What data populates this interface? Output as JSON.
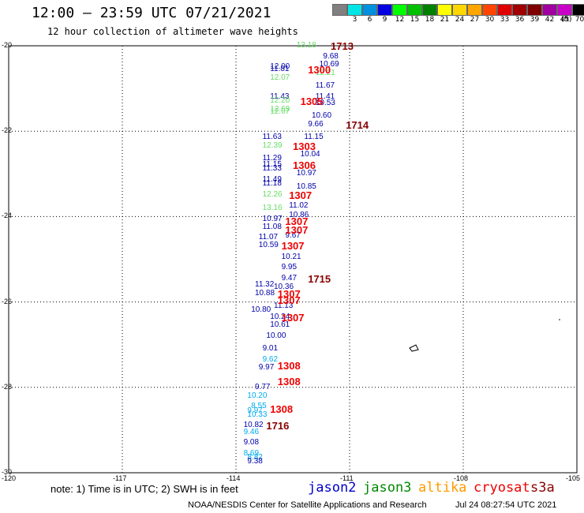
{
  "header": {
    "title": "12:00 – 23:59 UTC 07/21/2021",
    "subtitle": "12 hour collection of altimeter wave heights"
  },
  "colorbar": {
    "unit": "(ft)",
    "bins": [
      {
        "label": "",
        "color": "#808080"
      },
      {
        "label": "3",
        "color": "#00e5e5"
      },
      {
        "label": "6",
        "color": "#0090e0"
      },
      {
        "label": "9",
        "color": "#0000e0"
      },
      {
        "label": "12",
        "color": "#00ff00"
      },
      {
        "label": "15",
        "color": "#00c000"
      },
      {
        "label": "18",
        "color": "#008000"
      },
      {
        "label": "21",
        "color": "#ffff00"
      },
      {
        "label": "24",
        "color": "#ffd700"
      },
      {
        "label": "27",
        "color": "#ffa500"
      },
      {
        "label": "30",
        "color": "#ff4500"
      },
      {
        "label": "33",
        "color": "#e00000"
      },
      {
        "label": "36",
        "color": "#a00000"
      },
      {
        "label": "39",
        "color": "#800000"
      },
      {
        "label": "42",
        "color": "#a000a0"
      },
      {
        "label": "45",
        "color": "#c800c8"
      },
      {
        "label": "70",
        "color": "#000000"
      }
    ]
  },
  "map": {
    "lat_ticks": [
      "-20",
      "-22",
      "-24",
      "-26",
      "-28",
      "-30"
    ],
    "lon_ticks": [
      "-120",
      "-117",
      "-114",
      "-111",
      "-108",
      "-105"
    ],
    "wave_heights": [
      {
        "v": "13.18",
        "lat": -20.0,
        "lon": -112.4,
        "c": "#66dd66"
      },
      {
        "v": "9.68",
        "lat": -20.25,
        "lon": -111.7,
        "c": "#0000aa"
      },
      {
        "v": "10.69",
        "lat": -20.45,
        "lon": -111.8,
        "c": "#0000aa"
      },
      {
        "v": "12.00",
        "lat": -20.5,
        "lon": -113.1,
        "c": "#0000aa"
      },
      {
        "v": "11.81",
        "lat": -20.55,
        "lon": -113.1,
        "c": "#0000aa"
      },
      {
        "v": "12.21",
        "lat": -20.65,
        "lon": -111.9,
        "c": "#66dd66"
      },
      {
        "v": "12.07",
        "lat": -20.75,
        "lon": -113.1,
        "c": "#66dd66"
      },
      {
        "v": "11.67",
        "lat": -20.95,
        "lon": -111.9,
        "c": "#0000aa"
      },
      {
        "v": "11.43",
        "lat": -21.2,
        "lon": -113.1,
        "c": "#0000aa"
      },
      {
        "v": "11.41",
        "lat": -21.2,
        "lon": -111.9,
        "c": "#0000aa"
      },
      {
        "v": "12.20",
        "lat": -21.3,
        "lon": -113.1,
        "c": "#66dd66"
      },
      {
        "v": "10.53",
        "lat": -21.35,
        "lon": -111.9,
        "c": "#0000aa"
      },
      {
        "v": "12.69",
        "lat": -21.5,
        "lon": -113.1,
        "c": "#66dd66"
      },
      {
        "v": "12.07",
        "lat": -21.55,
        "lon": -113.1,
        "c": "#66dd66"
      },
      {
        "v": "10.60",
        "lat": -21.65,
        "lon": -112.0,
        "c": "#0000aa"
      },
      {
        "v": "9.66",
        "lat": -21.85,
        "lon": -112.1,
        "c": "#0000aa"
      },
      {
        "v": "11.63",
        "lat": -22.15,
        "lon": -113.3,
        "c": "#0000aa"
      },
      {
        "v": "11.15",
        "lat": -22.15,
        "lon": -112.2,
        "c": "#0000aa"
      },
      {
        "v": "12.39",
        "lat": -22.35,
        "lon": -113.3,
        "c": "#66dd66"
      },
      {
        "v": "10.04",
        "lat": -22.55,
        "lon": -112.3,
        "c": "#0000aa"
      },
      {
        "v": "11.29",
        "lat": -22.65,
        "lon": -113.3,
        "c": "#0000aa"
      },
      {
        "v": "11.15",
        "lat": -22.8,
        "lon": -113.3,
        "c": "#0000aa"
      },
      {
        "v": "11.33",
        "lat": -22.88,
        "lon": -113.3,
        "c": "#0000aa"
      },
      {
        "v": "10.97",
        "lat": -23.0,
        "lon": -112.4,
        "c": "#0000aa"
      },
      {
        "v": "11.49",
        "lat": -23.15,
        "lon": -113.3,
        "c": "#0000aa"
      },
      {
        "v": "11.18",
        "lat": -23.23,
        "lon": -113.3,
        "c": "#0000aa"
      },
      {
        "v": "10.85",
        "lat": -23.3,
        "lon": -112.4,
        "c": "#0000aa"
      },
      {
        "v": "12.26",
        "lat": -23.5,
        "lon": -113.3,
        "c": "#66dd66"
      },
      {
        "v": "11.02",
        "lat": -23.75,
        "lon": -112.6,
        "c": "#0000aa"
      },
      {
        "v": "13.16",
        "lat": -23.8,
        "lon": -113.3,
        "c": "#66dd66"
      },
      {
        "v": "10.86",
        "lat": -23.97,
        "lon": -112.6,
        "c": "#0000aa"
      },
      {
        "v": "10.97",
        "lat": -24.07,
        "lon": -113.3,
        "c": "#0000aa"
      },
      {
        "v": "11.08",
        "lat": -24.25,
        "lon": -113.3,
        "c": "#0000aa"
      },
      {
        "v": "9.67",
        "lat": -24.45,
        "lon": -112.7,
        "c": "#0000aa"
      },
      {
        "v": "11.07",
        "lat": -24.5,
        "lon": -113.4,
        "c": "#0000aa"
      },
      {
        "v": "10.59",
        "lat": -24.67,
        "lon": -113.4,
        "c": "#0000aa"
      },
      {
        "v": "10.21",
        "lat": -24.95,
        "lon": -112.8,
        "c": "#0000aa"
      },
      {
        "v": "9.95",
        "lat": -25.2,
        "lon": -112.8,
        "c": "#0000aa"
      },
      {
        "v": "9.47",
        "lat": -25.45,
        "lon": -112.8,
        "c": "#0000aa"
      },
      {
        "v": "11.32",
        "lat": -25.6,
        "lon": -113.5,
        "c": "#0000aa"
      },
      {
        "v": "10.36",
        "lat": -25.65,
        "lon": -113.0,
        "c": "#0000aa"
      },
      {
        "v": "10.88",
        "lat": -25.8,
        "lon": -113.5,
        "c": "#0000aa"
      },
      {
        "v": "11.13",
        "lat": -26.1,
        "lon": -113.0,
        "c": "#0000aa"
      },
      {
        "v": "10.80",
        "lat": -26.2,
        "lon": -113.6,
        "c": "#0000aa"
      },
      {
        "v": "10.24",
        "lat": -26.35,
        "lon": -113.1,
        "c": "#0000aa"
      },
      {
        "v": "10.61",
        "lat": -26.55,
        "lon": -113.1,
        "c": "#0000aa"
      },
      {
        "v": "10.00",
        "lat": -26.8,
        "lon": -113.2,
        "c": "#0000aa"
      },
      {
        "v": "9.01",
        "lat": -27.1,
        "lon": -113.3,
        "c": "#0000aa"
      },
      {
        "v": "9.62",
        "lat": -27.35,
        "lon": -113.3,
        "c": "#00aaee"
      },
      {
        "v": "9.97",
        "lat": -27.55,
        "lon": -113.4,
        "c": "#0000aa"
      },
      {
        "v": "9.77",
        "lat": -28.0,
        "lon": -113.5,
        "c": "#0000aa"
      },
      {
        "v": "10.20",
        "lat": -28.2,
        "lon": -113.7,
        "c": "#00aaee"
      },
      {
        "v": "8.55",
        "lat": -28.45,
        "lon": -113.6,
        "c": "#00aaee"
      },
      {
        "v": "9.97",
        "lat": -28.55,
        "lon": -113.7,
        "c": "#00aaee"
      },
      {
        "v": "10.33",
        "lat": -28.65,
        "lon": -113.7,
        "c": "#00aaee"
      },
      {
        "v": "10.82",
        "lat": -28.9,
        "lon": -113.8,
        "c": "#0000aa"
      },
      {
        "v": "9.46",
        "lat": -29.05,
        "lon": -113.8,
        "c": "#00aaee"
      },
      {
        "v": "9.08",
        "lat": -29.3,
        "lon": -113.8,
        "c": "#0000aa"
      },
      {
        "v": "8.69",
        "lat": -29.55,
        "lon": -113.8,
        "c": "#00aaee"
      },
      {
        "v": "8.82",
        "lat": -29.65,
        "lon": -113.7,
        "c": "#00aaee"
      },
      {
        "v": "9.38",
        "lat": -29.75,
        "lon": -113.7,
        "c": "#0000aa"
      }
    ],
    "time_marks": [
      {
        "t": "1713",
        "lat": -20.0,
        "lon": -111.5,
        "c": "#880000"
      },
      {
        "t": "1300",
        "lat": -20.55,
        "lon": -112.1,
        "c": "#ee0000"
      },
      {
        "t": "1305",
        "lat": -21.3,
        "lon": -112.3,
        "c": "#ee0000"
      },
      {
        "t": "1714",
        "lat": -21.85,
        "lon": -111.1,
        "c": "#880000"
      },
      {
        "t": "1303",
        "lat": -22.35,
        "lon": -112.5,
        "c": "#ee0000"
      },
      {
        "t": "1306",
        "lat": -22.8,
        "lon": -112.5,
        "c": "#ee0000"
      },
      {
        "t": "1307",
        "lat": -23.5,
        "lon": -112.6,
        "c": "#ee0000"
      },
      {
        "t": "1307",
        "lat": -24.1,
        "lon": -112.7,
        "c": "#ee0000"
      },
      {
        "t": "1307",
        "lat": -24.3,
        "lon": -112.7,
        "c": "#ee0000"
      },
      {
        "t": "1307",
        "lat": -24.68,
        "lon": -112.8,
        "c": "#ee0000"
      },
      {
        "t": "1715",
        "lat": -25.45,
        "lon": -112.1,
        "c": "#880000"
      },
      {
        "t": "1307",
        "lat": -25.8,
        "lon": -112.9,
        "c": "#ee0000"
      },
      {
        "t": "1307",
        "lat": -25.95,
        "lon": -112.9,
        "c": "#ee0000"
      },
      {
        "t": "1307",
        "lat": -26.35,
        "lon": -112.8,
        "c": "#ee0000"
      },
      {
        "t": "1308",
        "lat": -27.48,
        "lon": -112.9,
        "c": "#ee0000"
      },
      {
        "t": "1308",
        "lat": -27.85,
        "lon": -112.9,
        "c": "#ee0000"
      },
      {
        "t": "1308",
        "lat": -28.5,
        "lon": -113.1,
        "c": "#ee0000"
      },
      {
        "t": "1716",
        "lat": -28.9,
        "lon": -113.2,
        "c": "#880000"
      }
    ]
  },
  "footer": {
    "note": "note: 1) Time is in UTC; 2) SWH is in feet",
    "satellites": [
      {
        "name": "jason2",
        "color": "#0000cc"
      },
      {
        "name": "jason3",
        "color": "#008800"
      },
      {
        "name": "altika",
        "color": "#ff9900"
      },
      {
        "name": "cryosat",
        "color": "#ee0000"
      },
      {
        "name": "s3a",
        "color": "#880000"
      }
    ],
    "credit": "NOAA/NESDIS Center for Satellite Applications and Research",
    "timestamp": "Jul 24 08:27:54 UTC 2021"
  }
}
